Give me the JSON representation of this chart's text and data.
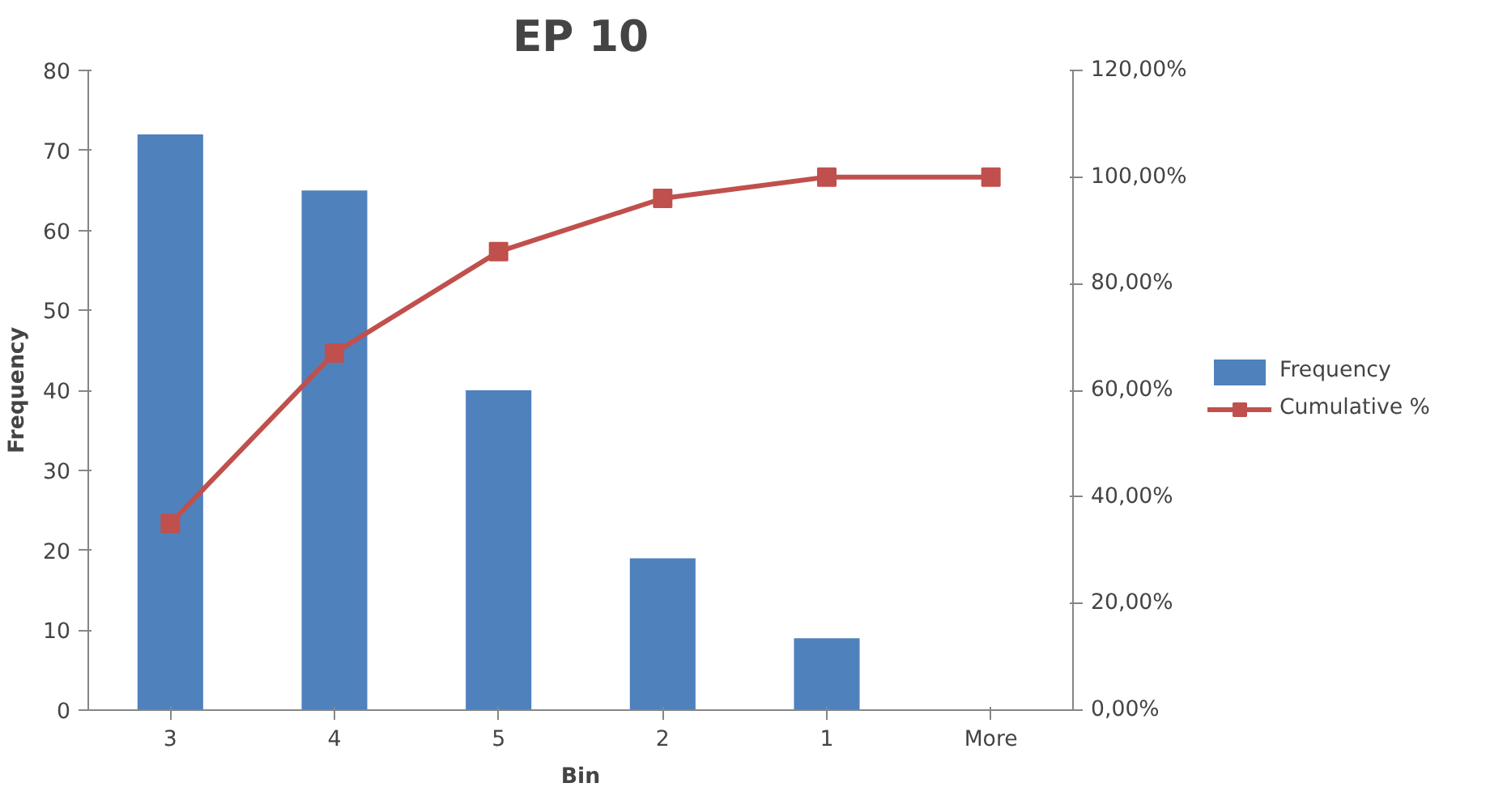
{
  "chart_data": {
    "type": "bar",
    "title": "EP 10",
    "xlabel": "Bin",
    "ylabel": "Frequency",
    "categories": [
      "3",
      "4",
      "5",
      "2",
      "1",
      "More"
    ],
    "series": [
      {
        "name": "Frequency",
        "color": "#4f81bd",
        "values": [
          72,
          65,
          40,
          19,
          9,
          0
        ]
      },
      {
        "name": "Cumulative %",
        "type": "line",
        "axis": "y2",
        "color": "#c0504d",
        "values": [
          35,
          67,
          86,
          96,
          100,
          100
        ]
      }
    ],
    "ylim": [
      0,
      80
    ],
    "yticks": [
      0,
      10,
      20,
      30,
      40,
      50,
      60,
      70,
      80
    ],
    "y2lim": [
      0,
      120
    ],
    "y2ticks": [
      {
        "value": 0,
        "label": "0,00%"
      },
      {
        "value": 20,
        "label": "20,00%"
      },
      {
        "value": 40,
        "label": "40,00%"
      },
      {
        "value": 60,
        "label": "60,00%"
      },
      {
        "value": 80,
        "label": "80,00%"
      },
      {
        "value": 100,
        "label": "100,00%"
      },
      {
        "value": 120,
        "label": "120,00%"
      }
    ],
    "marker": "square",
    "legend": "right",
    "grid": false
  }
}
